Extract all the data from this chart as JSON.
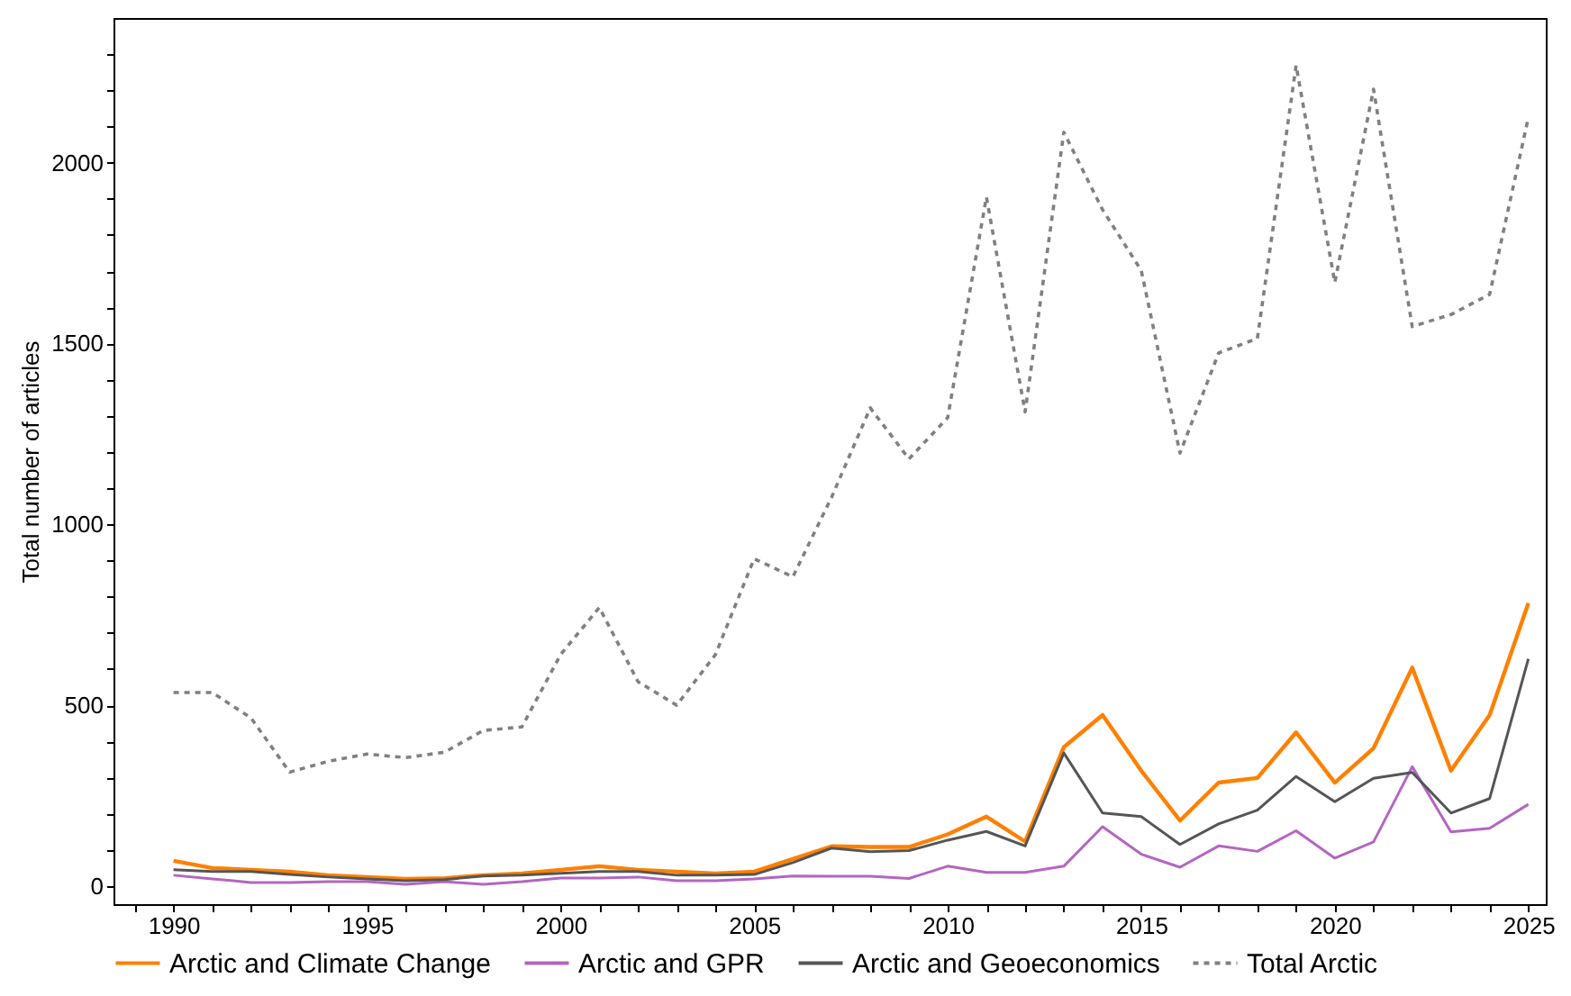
{
  "chart_data": {
    "type": "line",
    "ylabel": "Total number of articles",
    "legend": "bottom",
    "line_style": "solid",
    "x": [
      1990,
      1991,
      1992,
      1993,
      1994,
      1995,
      1996,
      1997,
      1998,
      1999,
      2000,
      2001,
      2002,
      2003,
      2004,
      2005,
      2006,
      2007,
      2008,
      2009,
      2010,
      2011,
      2012,
      2013,
      2014,
      2015,
      2016,
      2017,
      2018,
      2019,
      2020,
      2021,
      2022,
      2023,
      2024,
      2025
    ],
    "xlim": [
      1988.45,
      2025.45
    ],
    "xticks": [
      {
        "value": 1989,
        "label": null
      },
      1990,
      {
        "value": 1991,
        "label": null
      },
      {
        "value": 1992,
        "label": null
      },
      {
        "value": 1993,
        "label": null
      },
      {
        "value": 1994,
        "label": null
      },
      1995,
      {
        "value": 1996,
        "label": null
      },
      {
        "value": 1997,
        "label": null
      },
      {
        "value": 1998,
        "label": null
      },
      {
        "value": 1999,
        "label": null
      },
      2000,
      {
        "value": 2001,
        "label": null
      },
      {
        "value": 2002,
        "label": null
      },
      {
        "value": 2003,
        "label": null
      },
      {
        "value": 2004,
        "label": null
      },
      2005,
      {
        "value": 2006,
        "label": null
      },
      {
        "value": 2007,
        "label": null
      },
      {
        "value": 2008,
        "label": null
      },
      {
        "value": 2009,
        "label": null
      },
      2010,
      {
        "value": 2011,
        "label": null
      },
      {
        "value": 2012,
        "label": null
      },
      {
        "value": 2013,
        "label": null
      },
      {
        "value": 2014,
        "label": null
      },
      2015,
      {
        "value": 2016,
        "label": null
      },
      {
        "value": 2017,
        "label": null
      },
      {
        "value": 2018,
        "label": null
      },
      {
        "value": 2019,
        "label": null
      },
      2020,
      {
        "value": 2021,
        "label": null
      },
      {
        "value": 2022,
        "label": null
      },
      {
        "value": 2023,
        "label": null
      },
      {
        "value": 2024,
        "label": null
      },
      2025
    ],
    "ylim": [
      -50,
      2400
    ],
    "yticks": [
      0,
      {
        "value": 100,
        "label": null
      },
      {
        "value": 200,
        "label": null
      },
      {
        "value": 300,
        "label": null
      },
      {
        "value": 400,
        "label": null
      },
      500,
      {
        "value": 600,
        "label": null
      },
      {
        "value": 700,
        "label": null
      },
      {
        "value": 800,
        "label": null
      },
      {
        "value": 900,
        "label": null
      },
      1000,
      {
        "value": 1100,
        "label": null
      },
      {
        "value": 1200,
        "label": null
      },
      {
        "value": 1300,
        "label": null
      },
      {
        "value": 1400,
        "label": null
      },
      1500,
      {
        "value": 1600,
        "label": null
      },
      {
        "value": 1700,
        "label": null
      },
      {
        "value": 1800,
        "label": null
      },
      {
        "value": 1900,
        "label": null
      },
      2000,
      {
        "value": 2100,
        "label": null
      },
      {
        "value": 2200,
        "label": null
      },
      {
        "value": 2300,
        "label": null
      }
    ],
    "series": [
      {
        "name": "Arctic and Climate Change",
        "color": "#ff8000",
        "values": [
          70,
          50,
          45,
          40,
          30,
          25,
          20,
          22,
          30,
          35,
          45,
          55,
          45,
          40,
          35,
          40,
          75,
          110,
          108,
          108,
          143,
          192,
          123,
          384,
          473,
          319,
          181,
          286,
          299,
          425,
          286,
          381,
          604,
          319,
          473,
          782
        ]
      },
      {
        "name": "Arctic and GPR",
        "color": "#b366c0",
        "values": [
          30,
          20,
          10,
          10,
          12,
          12,
          5,
          12,
          5,
          12,
          22,
          22,
          25,
          15,
          15,
          20,
          28,
          27,
          27,
          21,
          55,
          38,
          38,
          55,
          164,
          88,
          52,
          111,
          96,
          153,
          77,
          122,
          330,
          150,
          160,
          226
        ]
      },
      {
        "name": "Arctic and Geoeconomics",
        "color": "#555555",
        "values": [
          45,
          40,
          40,
          32,
          25,
          20,
          15,
          18,
          28,
          30,
          35,
          40,
          40,
          30,
          30,
          32,
          65,
          105,
          95,
          98,
          127,
          151,
          111,
          368,
          202,
          192,
          115,
          172,
          210,
          303,
          233,
          298,
          314,
          202,
          242,
          628
        ]
      },
      {
        "name": "Total Arctic",
        "color": "#808080",
        "line_style": "dotted",
        "values": [
          535,
          535,
          465,
          315,
          345,
          365,
          355,
          370,
          430,
          440,
          640,
          770,
          565,
          500,
          640,
          905,
          855,
          1075,
          1322,
          1181,
          1295,
          1905,
          1311,
          2084,
          1870,
          1702,
          1197,
          1474,
          1514,
          2269,
          1669,
          2203,
          1547,
          1580,
          1636,
          2125
        ]
      }
    ]
  }
}
